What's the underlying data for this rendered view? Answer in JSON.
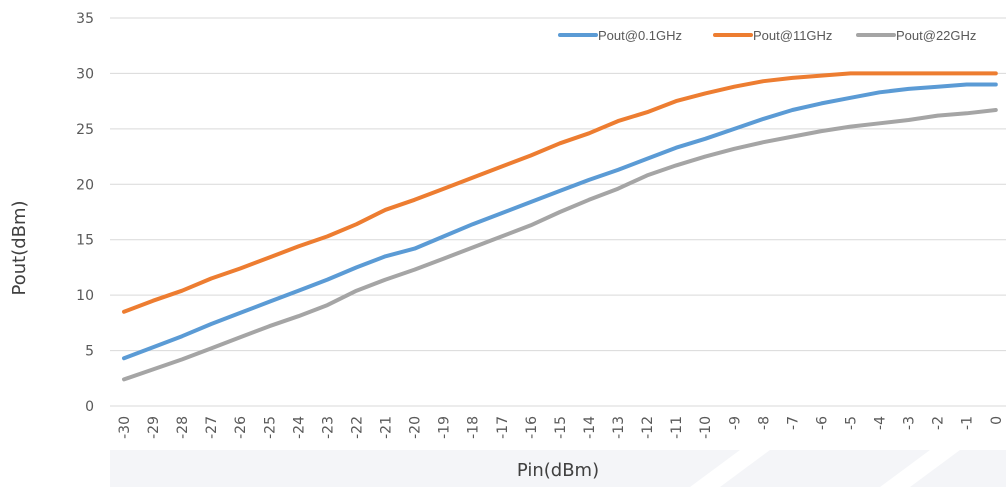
{
  "chart_data": {
    "type": "line",
    "title": "",
    "xlabel": "Pin(dBm)",
    "ylabel": "Pout(dBm)",
    "x": [
      -30,
      -29,
      -28,
      -27,
      -26,
      -25,
      -24,
      -23,
      -22,
      -21,
      -20,
      -19,
      -18,
      -17,
      -16,
      -15,
      -14,
      -13,
      -12,
      -11,
      -10,
      -9,
      -8,
      -7,
      -6,
      -5,
      -4,
      -3,
      -2,
      -1,
      0
    ],
    "ylim": [
      0,
      35
    ],
    "yticks": [
      0,
      5,
      10,
      15,
      20,
      25,
      30,
      35
    ],
    "grid": true,
    "legend_position": "top-right",
    "series": [
      {
        "name": "Pout@0.1GHz",
        "color": "#5b9bd5",
        "values": [
          4.3,
          5.3,
          6.3,
          7.4,
          8.4,
          9.4,
          10.4,
          11.4,
          12.5,
          13.5,
          14.2,
          15.3,
          16.4,
          17.4,
          18.4,
          19.4,
          20.4,
          21.3,
          22.3,
          23.3,
          24.1,
          25.0,
          25.9,
          26.7,
          27.3,
          27.8,
          28.3,
          28.6,
          28.8,
          29.0,
          29.0
        ]
      },
      {
        "name": "Pout@11GHz",
        "color": "#ed7d31",
        "values": [
          8.5,
          9.5,
          10.4,
          11.5,
          12.4,
          13.4,
          14.4,
          15.3,
          16.4,
          17.7,
          18.6,
          19.6,
          20.6,
          21.6,
          22.6,
          23.7,
          24.6,
          25.7,
          26.5,
          27.5,
          28.2,
          28.8,
          29.3,
          29.6,
          29.8,
          30.0,
          30.0,
          30.0,
          30.0,
          30.0,
          30.0
        ]
      },
      {
        "name": "Pout@22GHz",
        "color": "#a5a5a5",
        "values": [
          2.4,
          3.3,
          4.2,
          5.2,
          6.2,
          7.2,
          8.1,
          9.1,
          10.4,
          11.4,
          12.3,
          13.3,
          14.3,
          15.3,
          16.3,
          17.5,
          18.6,
          19.6,
          20.8,
          21.7,
          22.5,
          23.2,
          23.8,
          24.3,
          24.8,
          25.2,
          25.5,
          25.8,
          26.2,
          26.4,
          26.7
        ]
      }
    ]
  }
}
